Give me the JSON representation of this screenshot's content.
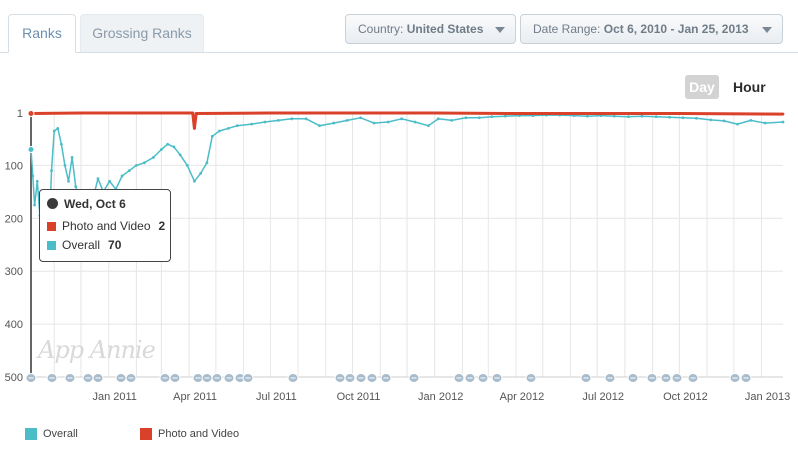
{
  "tabs": [
    {
      "label": "Ranks",
      "active": true
    },
    {
      "label": "Grossing Ranks",
      "active": false
    }
  ],
  "filters": {
    "country": {
      "label": "Country:",
      "value": "United States"
    },
    "date_range": {
      "label": "Date Range:",
      "value": "Oct 6, 2010 - Jan 25, 2013"
    }
  },
  "granularity": {
    "day_label": "Day",
    "hour_label": "Hour",
    "selected": "Day"
  },
  "watermark": "App Annie",
  "tooltip": {
    "date": "Wed, Oct 6",
    "rows": [
      {
        "name": "Photo and Video",
        "value": "2",
        "color": "#d9412b"
      },
      {
        "name": "Overall",
        "value": "70",
        "color": "#4bbdc8"
      }
    ]
  },
  "chart_data": {
    "type": "line",
    "x_tick_labels": [
      "Jan 2011",
      "Apr 2011",
      "Jul 2011",
      "Oct 2011",
      "Jan 2012",
      "Apr 2012",
      "Jul 2012",
      "Oct 2012",
      "Jan 2013"
    ],
    "y_tick_labels": [
      "1",
      "100",
      "200",
      "300",
      "400",
      "500"
    ],
    "y_reversed": true,
    "ylim": [
      1,
      500
    ],
    "xlim": [
      "2010-10-06",
      "2013-01-25"
    ],
    "grid": true,
    "legend": "bottom-left",
    "series": [
      {
        "name": "Overall",
        "color": "#4bbdc8",
        "points": [
          [
            "2010-10-06",
            70
          ],
          [
            "2010-10-08",
            120
          ],
          [
            "2010-10-10",
            175
          ],
          [
            "2010-10-13",
            130
          ],
          [
            "2010-10-16",
            195
          ],
          [
            "2010-10-19",
            165
          ],
          [
            "2010-10-22",
            185
          ],
          [
            "2010-10-24",
            150
          ],
          [
            "2010-10-27",
            200
          ],
          [
            "2010-10-29",
            110
          ],
          [
            "2010-11-01",
            35
          ],
          [
            "2010-11-05",
            30
          ],
          [
            "2010-11-09",
            60
          ],
          [
            "2010-11-13",
            100
          ],
          [
            "2010-11-17",
            130
          ],
          [
            "2010-11-21",
            85
          ],
          [
            "2010-11-25",
            140
          ],
          [
            "2010-11-29",
            160
          ],
          [
            "2010-12-03",
            195
          ],
          [
            "2010-12-08",
            155
          ],
          [
            "2010-12-14",
            165
          ],
          [
            "2010-12-20",
            125
          ],
          [
            "2010-12-26",
            150
          ],
          [
            "2011-01-02",
            130
          ],
          [
            "2011-01-09",
            145
          ],
          [
            "2011-01-16",
            120
          ],
          [
            "2011-01-24",
            110
          ],
          [
            "2011-02-01",
            100
          ],
          [
            "2011-02-10",
            95
          ],
          [
            "2011-02-20",
            85
          ],
          [
            "2011-03-01",
            70
          ],
          [
            "2011-03-08",
            60
          ],
          [
            "2011-03-15",
            65
          ],
          [
            "2011-03-22",
            80
          ],
          [
            "2011-03-30",
            100
          ],
          [
            "2011-04-07",
            130
          ],
          [
            "2011-04-14",
            115
          ],
          [
            "2011-04-21",
            95
          ],
          [
            "2011-04-27",
            45
          ],
          [
            "2011-05-05",
            35
          ],
          [
            "2011-05-15",
            30
          ],
          [
            "2011-05-25",
            25
          ],
          [
            "2011-06-10",
            22
          ],
          [
            "2011-06-25",
            18
          ],
          [
            "2011-07-10",
            15
          ],
          [
            "2011-07-25",
            12
          ],
          [
            "2011-08-10",
            12
          ],
          [
            "2011-08-25",
            25
          ],
          [
            "2011-09-10",
            20
          ],
          [
            "2011-09-25",
            15
          ],
          [
            "2011-10-10",
            10
          ],
          [
            "2011-10-25",
            20
          ],
          [
            "2011-11-10",
            18
          ],
          [
            "2011-11-25",
            12
          ],
          [
            "2011-12-10",
            18
          ],
          [
            "2011-12-25",
            25
          ],
          [
            "2012-01-05",
            12
          ],
          [
            "2012-01-20",
            15
          ],
          [
            "2012-02-05",
            10
          ],
          [
            "2012-02-20",
            10
          ],
          [
            "2012-03-05",
            8
          ],
          [
            "2012-03-20",
            7
          ],
          [
            "2012-04-05",
            6
          ],
          [
            "2012-04-20",
            6
          ],
          [
            "2012-05-05",
            5
          ],
          [
            "2012-05-20",
            5
          ],
          [
            "2012-06-05",
            6
          ],
          [
            "2012-06-20",
            7
          ],
          [
            "2012-07-05",
            6
          ],
          [
            "2012-07-20",
            7
          ],
          [
            "2012-08-05",
            8
          ],
          [
            "2012-08-20",
            7
          ],
          [
            "2012-09-05",
            8
          ],
          [
            "2012-09-20",
            9
          ],
          [
            "2012-10-05",
            10
          ],
          [
            "2012-10-20",
            11
          ],
          [
            "2012-11-05",
            14
          ],
          [
            "2012-11-20",
            16
          ],
          [
            "2012-12-05",
            22
          ],
          [
            "2012-12-20",
            15
          ],
          [
            "2013-01-05",
            20
          ],
          [
            "2013-01-25",
            18
          ]
        ]
      },
      {
        "name": "Photo and Video",
        "color": "#d9412b",
        "points": [
          [
            "2010-10-06",
            2
          ],
          [
            "2010-12-01",
            1
          ],
          [
            "2011-03-01",
            1
          ],
          [
            "2011-04-05",
            1
          ],
          [
            "2011-04-07",
            30
          ],
          [
            "2011-04-09",
            2
          ],
          [
            "2011-07-01",
            1
          ],
          [
            "2011-10-01",
            1
          ],
          [
            "2012-01-01",
            1
          ],
          [
            "2012-04-01",
            2
          ],
          [
            "2012-07-01",
            2
          ],
          [
            "2012-10-01",
            2
          ],
          [
            "2013-01-25",
            3
          ]
        ]
      }
    ]
  }
}
